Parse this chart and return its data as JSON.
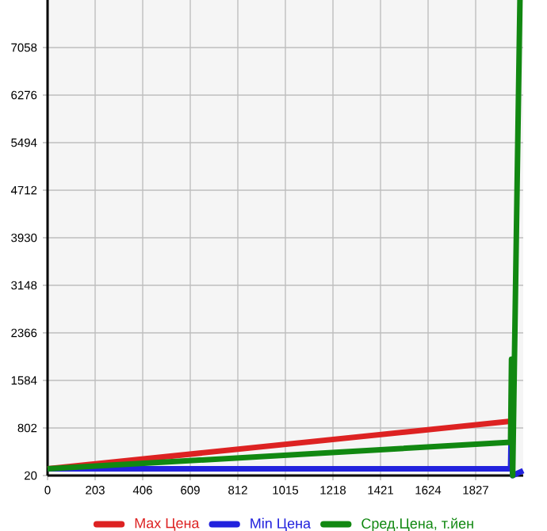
{
  "chart_data": {
    "type": "line",
    "xlim": [
      0,
      2030
    ],
    "ylim": [
      20,
      7840
    ],
    "xticks": [
      0,
      203,
      406,
      609,
      812,
      1015,
      1218,
      1421,
      1624,
      1827
    ],
    "yticks": [
      20,
      802,
      1584,
      2366,
      3148,
      3930,
      4712,
      5494,
      6276,
      7058
    ],
    "grid": true,
    "legend": "bottom",
    "marker": "none",
    "line_style": "solid",
    "series": [
      {
        "name": "Max Цена",
        "color": "#dd2222",
        "x": [
          0,
          1976
        ],
        "values": [
          130,
          914
        ]
      },
      {
        "name": "Min Цена",
        "color": "#2222dd",
        "x": [
          0,
          1976,
          1978,
          1985,
          2030
        ],
        "values": [
          130,
          130,
          590,
          20,
          100
        ]
      },
      {
        "name": "Сред.Цена, т.йен",
        "color": "#118811",
        "x": [
          0,
          1976,
          1980,
          1985,
          2016
        ],
        "values": [
          130,
          567,
          1931,
          20,
          7840
        ]
      }
    ]
  }
}
